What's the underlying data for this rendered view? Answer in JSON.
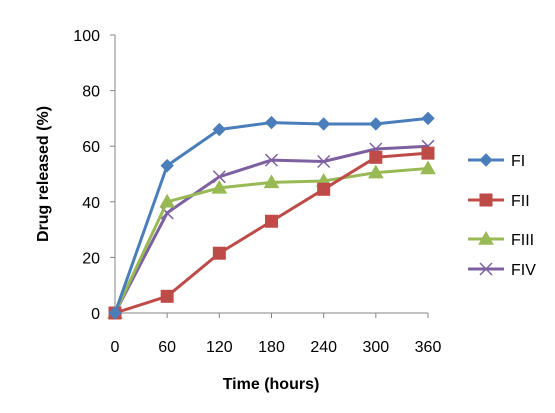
{
  "chart_data": {
    "type": "line",
    "title": "",
    "xlabel": "Time (hours)",
    "ylabel": "Drug released (%)",
    "x": [
      0,
      60,
      120,
      180,
      240,
      300,
      360
    ],
    "x_ticks": [
      "0",
      "60",
      "120",
      "180",
      "240",
      "300",
      "360"
    ],
    "y_ticks": [
      "0",
      "20",
      "40",
      "60",
      "80",
      "100"
    ],
    "ylim": [
      0,
      100
    ],
    "grid": false,
    "legend": "right",
    "series": [
      {
        "name": "FI",
        "color": "#4A7EBB",
        "marker": "diamond",
        "values": [
          0,
          53,
          66,
          68.5,
          68,
          68,
          70
        ]
      },
      {
        "name": "FII",
        "color": "#BE4B48",
        "marker": "square",
        "values": [
          0,
          6,
          21.5,
          33,
          44.5,
          56,
          57.5
        ]
      },
      {
        "name": "FIII",
        "color": "#98B954",
        "marker": "triangle",
        "values": [
          0,
          40,
          45,
          47,
          47.5,
          50.5,
          52
        ]
      },
      {
        "name": "FIV",
        "color": "#7D60A0",
        "marker": "x",
        "values": [
          0,
          36,
          49,
          55,
          54.5,
          59,
          60
        ]
      }
    ]
  }
}
